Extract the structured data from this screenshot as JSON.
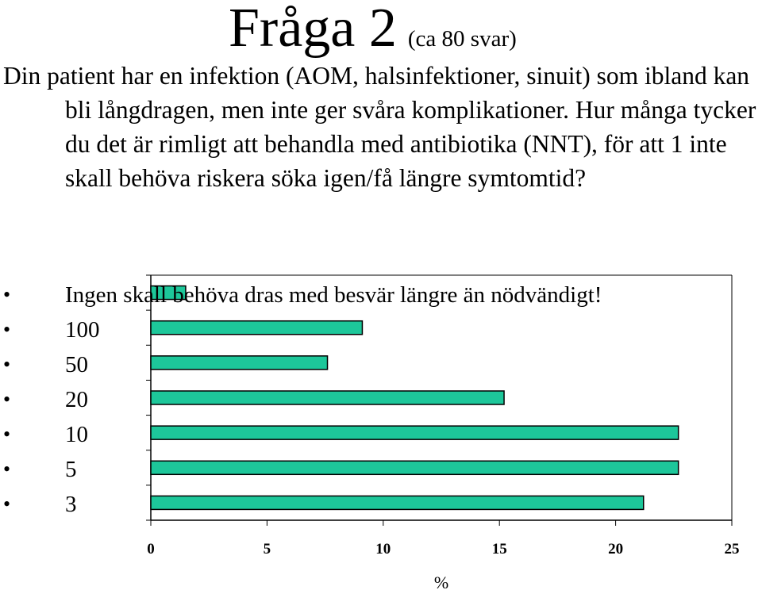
{
  "slide": {
    "title": "Fråga 2",
    "subtitle": "(ca 80 svar)",
    "question": "Din patient har en infektion (AOM, halsinfektioner, sinuit) som ibland kan bli långdragen, men inte ger svåra komplikationer. Hur många tycker du det är rimligt att behandla med antibiotika (NNT), för att 1 inte skall behöva riskera söka igen/få längre symtomtid?",
    "bullet_char": "•"
  },
  "chart_data": {
    "type": "bar",
    "orientation": "horizontal",
    "categories": [
      "Ingen skall behöva dras med besvär längre än nödvändigt!",
      "100",
      "50",
      "20",
      "10",
      "5",
      "3"
    ],
    "values": [
      1.5,
      9.1,
      7.6,
      15.2,
      22.7,
      22.7,
      21.2
    ],
    "xlabel": "%",
    "xlim": [
      0,
      25
    ],
    "xticks": [
      "0",
      "5",
      "10",
      "15",
      "20",
      "25"
    ],
    "colors": {
      "bar_fill": "#1dc79a",
      "bar_stroke": "#000000",
      "axis": "#000000"
    }
  }
}
